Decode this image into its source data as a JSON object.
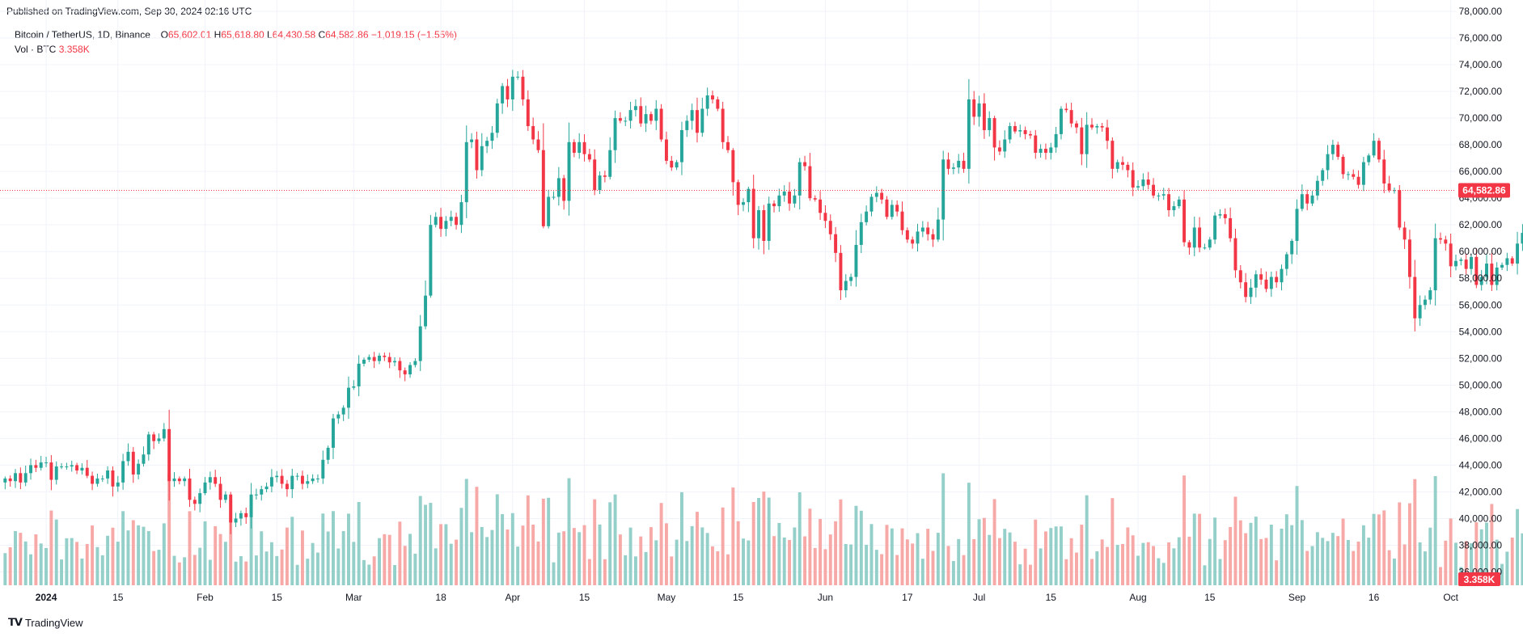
{
  "header": {
    "published": "Published on TradingView.com, Sep 30, 2024 02:16 UTC"
  },
  "legend": {
    "symbol": "Bitcoin / TetherUS, 1D, Binance",
    "o_label": "O",
    "o_value": "65,602.01",
    "h_label": "H",
    "h_value": "65,618.80",
    "l_label": "L",
    "l_value": "64,430.58",
    "c_label": "C",
    "c_value": "64,582.86",
    "change": "−1,019.15 (−1.55%)",
    "vol_label": "Vol · BTC",
    "vol_value": "3.358K"
  },
  "footer": {
    "logo_text": "TradingView",
    "logo_icon": "tradingview-logo-icon"
  },
  "colors": {
    "up": "#26a69a",
    "down": "#f23645",
    "up_vol": "#94cfc9",
    "down_vol": "#f7a9a7",
    "grid": "#f0f3fa"
  },
  "chart_data": {
    "type": "candlestick",
    "symbol": "BTCUSDT",
    "interval": "1D",
    "x_range": [
      "2023-12-23",
      "2024-10-02"
    ],
    "ylim": [
      35000,
      78000
    ],
    "y_ticks": [
      36000,
      38000,
      40000,
      42000,
      44000,
      46000,
      48000,
      50000,
      52000,
      54000,
      56000,
      58000,
      60000,
      62000,
      64000,
      66000,
      68000,
      70000,
      72000,
      74000,
      76000,
      78000
    ],
    "y_tick_labels": [
      "36,000.00",
      "38,000.00",
      "40,000.00",
      "42,000.00",
      "44,000.00",
      "46,000.00",
      "48,000.00",
      "50,000.00",
      "52,000.00",
      "54,000.00",
      "56,000.00",
      "58,000.00",
      "60,000.00",
      "62,000.00",
      "64,000.00",
      "66,000.00",
      "68,000.00",
      "70,000.00",
      "72,000.00",
      "74,000.00",
      "76,000.00",
      "78,000.00"
    ],
    "x_ticks": [
      {
        "date": "2024-01-01",
        "label": "2024",
        "bold": true
      },
      {
        "date": "2024-01-15",
        "label": "15"
      },
      {
        "date": "2024-02-01",
        "label": "Feb"
      },
      {
        "date": "2024-02-15",
        "label": "15"
      },
      {
        "date": "2024-03-01",
        "label": "Mar"
      },
      {
        "date": "2024-03-18",
        "label": "18"
      },
      {
        "date": "2024-04-01",
        "label": "Apr"
      },
      {
        "date": "2024-04-15",
        "label": "15"
      },
      {
        "date": "2024-05-01",
        "label": "May"
      },
      {
        "date": "2024-05-15",
        "label": "15"
      },
      {
        "date": "2024-06-01",
        "label": "Jun"
      },
      {
        "date": "2024-06-17",
        "label": "17"
      },
      {
        "date": "2024-07-01",
        "label": "Jul"
      },
      {
        "date": "2024-07-15",
        "label": "15"
      },
      {
        "date": "2024-08-01",
        "label": "Aug"
      },
      {
        "date": "2024-08-15",
        "label": "15"
      },
      {
        "date": "2024-09-01",
        "label": "Sep"
      },
      {
        "date": "2024-09-16",
        "label": "16"
      },
      {
        "date": "2024-10-01",
        "label": "Oct"
      }
    ],
    "last_price": 64582.86,
    "last_price_label": "64,582.86",
    "last_volume_label": "3.358K",
    "start_date": "2023-12-24",
    "closes": [
      43000,
      42800,
      43400,
      42700,
      43400,
      44000,
      43800,
      44200,
      44200,
      42900,
      43900,
      43900,
      43900,
      44000,
      43600,
      43800,
      43200,
      42600,
      43000,
      43000,
      43600,
      42400,
      42700,
      44300,
      45000,
      43300,
      44100,
      44800,
      46300,
      45800,
      46000,
      46700,
      42800,
      43000,
      42800,
      43000,
      41400,
      41100,
      41900,
      42700,
      43100,
      42600,
      41400,
      41800,
      39700,
      40000,
      40400,
      40100,
      41800,
      41800,
      42200,
      42400,
      43100,
      43200,
      42600,
      42200,
      43200,
      43200,
      42600,
      42800,
      43000,
      43000,
      44400,
      45300,
      47500,
      47800,
      48300,
      49800,
      49900,
      51600,
      51900,
      52100,
      51800,
      52200,
      52100,
      51700,
      51800,
      51100,
      50800,
      51500,
      51800,
      54400,
      56700,
      62000,
      62600,
      61700,
      62300,
      62600,
      62000,
      63700,
      68200,
      68400,
      66100,
      67900,
      68300,
      68900,
      71100,
      72400,
      71400,
      73100,
      73100,
      71400,
      69400,
      68400,
      67600,
      61900,
      64100,
      64100,
      65500,
      63800,
      68200,
      67400,
      68200,
      67300,
      66900,
      64600,
      65700,
      65600,
      67600,
      70000,
      69800,
      69800,
      70600,
      70900,
      69600,
      70300,
      69800,
      70700,
      68400,
      66800,
      66300,
      66700,
      69100,
      69800,
      70600,
      68900,
      70700,
      71700,
      71400,
      70700,
      68200,
      67600,
      65200,
      63500,
      63700,
      64700,
      61000,
      63100,
      60800,
      63600,
      63400,
      64200,
      64500,
      63600,
      64200,
      66700,
      66400,
      64000,
      63900,
      62900,
      62300,
      61300,
      59900,
      57100,
      57800,
      58100,
      60500,
      62200,
      63000,
      64100,
      64400,
      63900,
      62600,
      63500,
      63000,
      61600,
      60900,
      60600,
      61500,
      61800,
      61300,
      60900,
      62400,
      66900,
      66200,
      66300,
      66800,
      66200,
      71400,
      70100,
      71100,
      69100,
      70000,
      67800,
      67500,
      68400,
      69400,
      69000,
      69100,
      68800,
      68700,
      67400,
      67700,
      67400,
      67800,
      68800,
      70700,
      70600,
      69600,
      69300,
      67300,
      69500,
      69300,
      69400,
      69300,
      68300,
      66200,
      66700,
      66500,
      66100,
      64800,
      64900,
      65400,
      65000,
      64200,
      64200,
      64300,
      63100,
      63400,
      63900,
      60700,
      60300,
      61800,
      60300,
      60300,
      60900,
      62700,
      62800,
      62500,
      61000,
      58600,
      57700,
      56600,
      57300,
      58300,
      57900,
      57200,
      58100,
      57700,
      58700,
      59800,
      60800,
      63200,
      64300,
      63600,
      64200,
      65300,
      66100,
      67300,
      68000,
      67100,
      65800,
      65800,
      65600,
      65000,
      66700,
      67200,
      68300,
      66900,
      65100,
      64600,
      64600,
      61800,
      60900,
      58100,
      55000,
      56000,
      56400,
      57100,
      61000,
      60900,
      60600,
      58900,
      59300,
      59400,
      58700,
      59600,
      57500,
      58100,
      59100,
      57500,
      58800,
      59000,
      59500,
      59100,
      60600,
      61400,
      62900,
      63900,
      64200,
      64100,
      62900,
      61700,
      59900,
      59400,
      58100,
      59100,
      59000,
      57300,
      56000,
      53900,
      54200,
      54900,
      56000,
      57600,
      57400,
      58000,
      60500,
      60000,
      58300,
      59400,
      60600,
      60100,
      62400,
      63300,
      63700,
      63700,
      64300,
      63700,
      65500,
      64600,
      65800,
      65600,
      64600
    ],
    "max_volume": 48000
  }
}
